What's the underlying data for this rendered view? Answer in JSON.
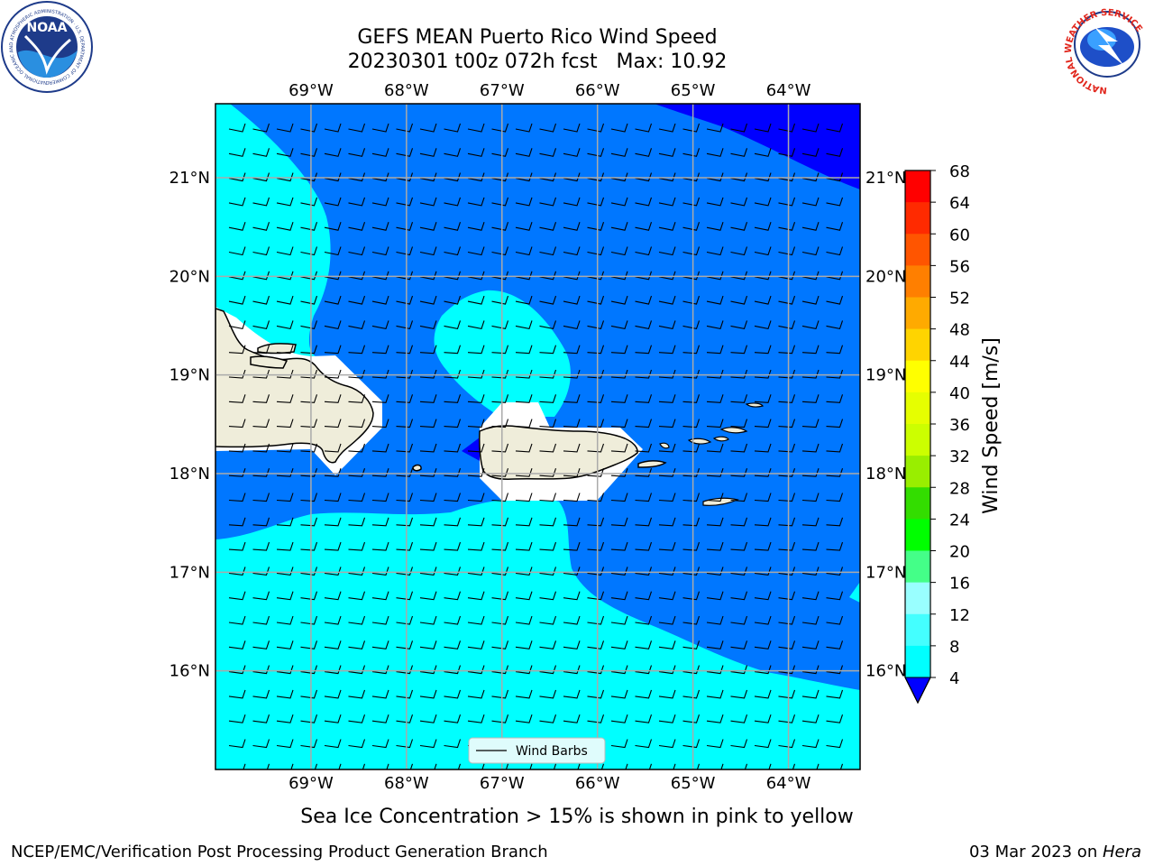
{
  "title": {
    "line1": "GEFS MEAN Puerto Rico Wind Speed",
    "line2": "20230301 t00z 072h fcst   Max: 10.92"
  },
  "logos": {
    "noaa": "NOAA",
    "noaa_ring": "NATIONAL OCEANIC AND ATMOSPHERIC ADMINISTRATION · U.S. DEPARTMENT OF COMMERCE",
    "nws_ring": "NATIONAL WEATHER SERVICE"
  },
  "map": {
    "lon_labels": [
      "69°W",
      "68°W",
      "67°W",
      "66°W",
      "65°W",
      "64°W"
    ],
    "lat_labels": [
      "21°N",
      "20°N",
      "19°N",
      "18°N",
      "17°N",
      "16°N"
    ],
    "lon_values": [
      -69,
      -68,
      -67,
      -66,
      -65,
      -64
    ],
    "lat_values": [
      21,
      20,
      19,
      18,
      17,
      16
    ],
    "lon_range": [
      -70,
      -63.25
    ],
    "lat_range": [
      15,
      21.75
    ],
    "legend_label": "Wind Barbs"
  },
  "colorbar": {
    "label": "Wind Speed [m/s]",
    "ticks": [
      "68",
      "64",
      "60",
      "56",
      "52",
      "48",
      "44",
      "40",
      "36",
      "32",
      "28",
      "24",
      "20",
      "16",
      "12",
      "8",
      "4"
    ],
    "colors": [
      "#ff0000",
      "#ff2a00",
      "#ff5500",
      "#ff7f00",
      "#ffaa00",
      "#ffd400",
      "#ffff00",
      "#e6ff00",
      "#ccff00",
      "#99ee00",
      "#33dd00",
      "#00ff00",
      "#44ff88",
      "#99ffff",
      "#44ffff",
      "#00ffff",
      "#0077ff"
    ],
    "extend_color": "#0000ff"
  },
  "colors": {
    "dark_blue": "#0000ff",
    "mid_blue": "#0077ff",
    "cyan": "#00ffff",
    "land": "#efedda"
  },
  "footer": {
    "sea_ice_note": "Sea Ice Concentration > 15% is shown in pink to yellow",
    "left": "NCEP/EMC/Verification Post Processing Product Generation Branch",
    "right_date": "03 Mar 2023 on ",
    "right_machine": "Hera"
  }
}
